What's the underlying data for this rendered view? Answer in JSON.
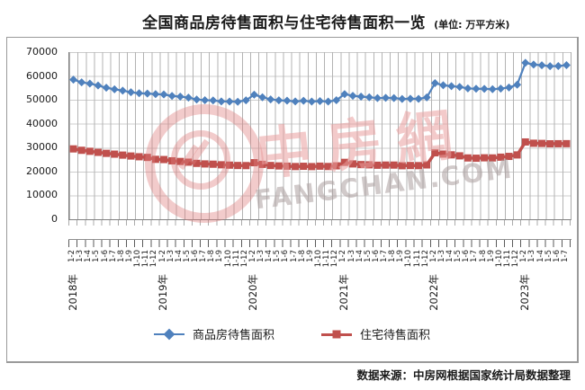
{
  "title": {
    "main": "全国商品房待售面积与住宅待售面积一览",
    "unit": "(单位: 万平方米)"
  },
  "source": "数据来源：中房网根据国家统计局数据整理",
  "watermark": {
    "cjk": "中房網",
    "latin": "FANGCHAN.COM"
  },
  "colors": {
    "series_commodity": "#4F81BD",
    "series_residential": "#C0504D",
    "grid_horizontal": "#CCCCCC",
    "grid_vertical": "#B3B3B3",
    "axis": "#808080",
    "frame_border": "#9A9A9A",
    "watermark_pink": "#E99E9E",
    "watermark_gray": "#AC9E9E"
  },
  "chart_data": {
    "type": "line",
    "title": "全国商品房待售面积与住宅待售面积一览",
    "unit_label": "万平方米",
    "grid": true,
    "legend_position": "bottom",
    "y_axis": {
      "min": 0,
      "max": 70000,
      "step": 10000,
      "ticks": [
        "0",
        "10000",
        "20000",
        "30000",
        "40000",
        "50000",
        "60000",
        "70000"
      ]
    },
    "categories": [
      "1-2",
      "1-3",
      "1-4",
      "1-5",
      "1-6",
      "1-7",
      "1-8",
      "1-9",
      "1-10",
      "1-11",
      "1-12",
      "1-2",
      "1-3",
      "1-4",
      "1-5",
      "1-6",
      "1-7",
      "1-8",
      "1-9",
      "1-10",
      "1-11",
      "1-12",
      "1-2",
      "1-3",
      "1-4",
      "1-5",
      "1-6",
      "1-7",
      "1-8",
      "1-9",
      "1-10",
      "1-11",
      "1-12",
      "1-2",
      "1-3",
      "1-4",
      "1-5",
      "1-6",
      "1-7",
      "1-8",
      "1-9",
      "1-10",
      "1-11",
      "1-12",
      "1-2",
      "1-3",
      "1-4",
      "1-5",
      "1-6",
      "1-7",
      "1-8",
      "1-9",
      "1-10",
      "1-11",
      "1-12",
      "1-2",
      "1-3",
      "1-4",
      "1-5",
      "1-6",
      "1-7"
    ],
    "years": [
      {
        "label": "2018年",
        "index": 0
      },
      {
        "label": "2019年",
        "index": 11
      },
      {
        "label": "2020年",
        "index": 22
      },
      {
        "label": "2021年",
        "index": 33
      },
      {
        "label": "2022年",
        "index": 44
      },
      {
        "label": "2023年",
        "index": 55
      }
    ],
    "series": [
      {
        "name": "商品房待售面积",
        "marker": "diamond",
        "color": "#4F81BD",
        "values": [
          58468,
          57329,
          56838,
          56010,
          55083,
          54428,
          53873,
          53191,
          52789,
          52627,
          52414,
          52251,
          51646,
          51380,
          50928,
          50162,
          49876,
          49784,
          49346,
          49323,
          49221,
          49821,
          52175,
          51104,
          50207,
          49821,
          49662,
          49362,
          49609,
          49295,
          49492,
          49287,
          49850,
          52425,
          51693,
          51380,
          51087,
          50738,
          50864,
          50782,
          50385,
          50494,
          50438,
          51023,
          57026,
          56113,
          55735,
          55433,
          54784,
          54655,
          54605,
          54467,
          54734,
          55203,
          56366,
          65528,
          64770,
          64487,
          64120,
          64159,
          64564
        ]
      },
      {
        "name": "住宅待售面积",
        "marker": "square",
        "color": "#C0504D",
        "values": [
          29469,
          28885,
          28466,
          28025,
          27608,
          27268,
          26869,
          26492,
          26176,
          25900,
          25091,
          25012,
          24474,
          24210,
          23915,
          23409,
          23173,
          23056,
          22821,
          22667,
          22520,
          22471,
          23695,
          22992,
          22518,
          22336,
          22232,
          22079,
          22189,
          22063,
          22243,
          22101,
          22379,
          23833,
          23183,
          22898,
          22806,
          22628,
          22696,
          22687,
          22422,
          22512,
          22464,
          22761,
          27837,
          27300,
          26980,
          26556,
          25683,
          25564,
          25740,
          25688,
          26003,
          26324,
          26947,
          32371,
          31836,
          31754,
          31605,
          31639,
          31662
        ]
      }
    ]
  }
}
